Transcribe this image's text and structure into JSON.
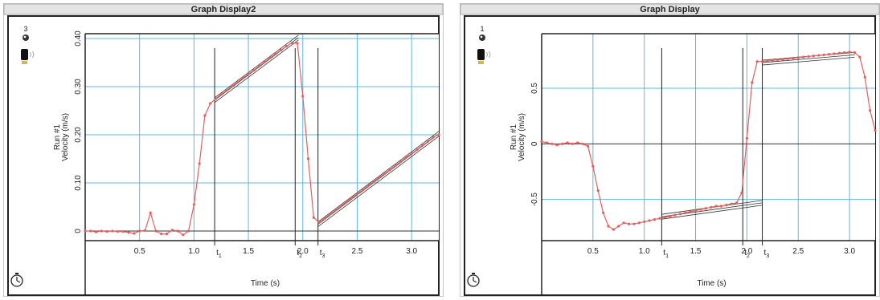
{
  "chart_data": [
    {
      "type": "line",
      "title": "Graph Display2",
      "xlabel": "Time (s)",
      "ylabel_line1": "Run #1",
      "ylabel_line2": "Velocity (m/s)",
      "badge_number": "3",
      "xlim": [
        0.0,
        3.25
      ],
      "ylim": [
        -0.02,
        0.41
      ],
      "x_ticks": [
        0.5,
        1.0,
        1.5,
        2.0,
        2.5,
        3.0
      ],
      "x_tick_labels": [
        "0.5",
        "1.0",
        "1.5",
        "2.0",
        "2.5",
        "3.0"
      ],
      "y_ticks": [
        0.0,
        0.1,
        0.2,
        0.3,
        0.4
      ],
      "y_tick_labels": [
        "0",
        "0.10",
        "0.20",
        "0.30",
        "0.40"
      ],
      "grid": true,
      "markers": [
        {
          "label": "t",
          "sub": "1",
          "x": 1.19
        },
        {
          "label": "t",
          "sub": "2",
          "x": 1.93
        },
        {
          "label": "t",
          "sub": "3",
          "x": 2.14
        }
      ],
      "fit_lines": [
        {
          "x": [
            1.19,
            1.96
          ],
          "y": [
            0.272,
            0.402
          ]
        },
        {
          "x": [
            2.14,
            3.25
          ],
          "y": [
            0.014,
            0.202
          ]
        }
      ],
      "series": [
        {
          "color": "#e06060",
          "x": [
            0.0,
            0.05,
            0.1,
            0.15,
            0.2,
            0.25,
            0.3,
            0.35,
            0.4,
            0.45,
            0.5,
            0.55,
            0.6,
            0.65,
            0.7,
            0.75,
            0.8,
            0.85,
            0.9,
            0.95,
            1.0,
            1.05,
            1.1,
            1.15,
            1.2,
            1.25,
            1.3,
            1.35,
            1.4,
            1.45,
            1.5,
            1.55,
            1.6,
            1.65,
            1.7,
            1.75,
            1.8,
            1.85,
            1.9,
            1.95,
            2.0,
            2.05,
            2.1,
            2.15,
            2.2,
            2.25,
            2.3,
            2.35,
            2.4,
            2.45,
            2.5,
            2.55,
            2.6,
            2.65,
            2.7,
            2.75,
            2.8,
            2.85,
            2.9,
            2.95,
            3.0,
            3.05,
            3.1,
            3.15,
            3.2,
            3.25
          ],
          "y": [
            0.0,
            0.0,
            -0.002,
            0.0,
            -0.001,
            0.0,
            -0.001,
            -0.001,
            -0.003,
            -0.005,
            0.0,
            0.001,
            0.038,
            0.0,
            -0.006,
            -0.006,
            0.002,
            0.0,
            -0.008,
            0.0,
            0.055,
            0.14,
            0.24,
            0.265,
            0.275,
            0.284,
            0.292,
            0.301,
            0.309,
            0.318,
            0.326,
            0.334,
            0.343,
            0.351,
            0.36,
            0.368,
            0.376,
            0.384,
            0.391,
            0.39,
            0.28,
            0.15,
            0.028,
            0.018,
            0.026,
            0.035,
            0.043,
            0.052,
            0.06,
            0.069,
            0.077,
            0.085,
            0.094,
            0.102,
            0.111,
            0.119,
            0.127,
            0.136,
            0.144,
            0.153,
            0.161,
            0.169,
            0.178,
            0.186,
            0.195,
            0.2
          ]
        }
      ]
    },
    {
      "type": "line",
      "title": "Graph Display",
      "xlabel": "Time (s)",
      "ylabel_line1": "Run #1",
      "ylabel_line2": "Velocity (m/s)",
      "badge_number": "1",
      "xlim": [
        0.0,
        3.25
      ],
      "ylim": [
        -0.87,
        0.99
      ],
      "x_ticks": [
        0.5,
        1.0,
        1.5,
        2.0,
        2.5,
        3.0
      ],
      "x_tick_labels": [
        "0.5",
        "1.0",
        "1.5",
        "2.0",
        "2.5",
        "3.0"
      ],
      "y_ticks": [
        -0.5,
        0.0,
        0.5
      ],
      "y_tick_labels": [
        "-0.5",
        "0",
        "0.5"
      ],
      "grid": true,
      "markers": [
        {
          "label": "t",
          "sub": "1",
          "x": 1.17
        },
        {
          "label": "t",
          "sub": "2",
          "x": 1.96
        },
        {
          "label": "t",
          "sub": "3",
          "x": 2.15
        }
      ],
      "fit_lines": [
        {
          "x": [
            1.17,
            2.15
          ],
          "y": [
            -0.655,
            -0.53
          ]
        },
        {
          "x": [
            2.15,
            3.05
          ],
          "y": [
            0.73,
            0.8
          ]
        }
      ],
      "series": [
        {
          "color": "#e06060",
          "x": [
            0.0,
            0.05,
            0.1,
            0.15,
            0.2,
            0.25,
            0.3,
            0.35,
            0.4,
            0.45,
            0.5,
            0.55,
            0.6,
            0.65,
            0.7,
            0.75,
            0.8,
            0.85,
            0.9,
            0.95,
            1.0,
            1.05,
            1.1,
            1.15,
            1.2,
            1.25,
            1.3,
            1.35,
            1.4,
            1.45,
            1.5,
            1.55,
            1.6,
            1.65,
            1.7,
            1.75,
            1.8,
            1.85,
            1.9,
            1.95,
            2.0,
            2.05,
            2.1,
            2.15,
            2.2,
            2.25,
            2.3,
            2.35,
            2.4,
            2.45,
            2.5,
            2.55,
            2.6,
            2.65,
            2.7,
            2.75,
            2.8,
            2.85,
            2.9,
            2.95,
            3.0,
            3.05,
            3.1,
            3.15,
            3.2,
            3.25
          ],
          "y": [
            0.02,
            0.01,
            0.0,
            -0.01,
            0.0,
            0.01,
            0.0,
            0.01,
            0.0,
            -0.02,
            -0.2,
            -0.42,
            -0.62,
            -0.74,
            -0.77,
            -0.74,
            -0.71,
            -0.72,
            -0.72,
            -0.71,
            -0.7,
            -0.69,
            -0.68,
            -0.67,
            -0.66,
            -0.65,
            -0.64,
            -0.63,
            -0.62,
            -0.61,
            -0.6,
            -0.59,
            -0.58,
            -0.57,
            -0.56,
            -0.56,
            -0.55,
            -0.54,
            -0.53,
            -0.44,
            0.05,
            0.55,
            0.74,
            0.74,
            0.745,
            0.75,
            0.755,
            0.76,
            0.765,
            0.77,
            0.775,
            0.78,
            0.785,
            0.79,
            0.795,
            0.8,
            0.805,
            0.81,
            0.815,
            0.82,
            0.825,
            0.82,
            0.78,
            0.6,
            0.3,
            0.12
          ]
        }
      ]
    }
  ]
}
